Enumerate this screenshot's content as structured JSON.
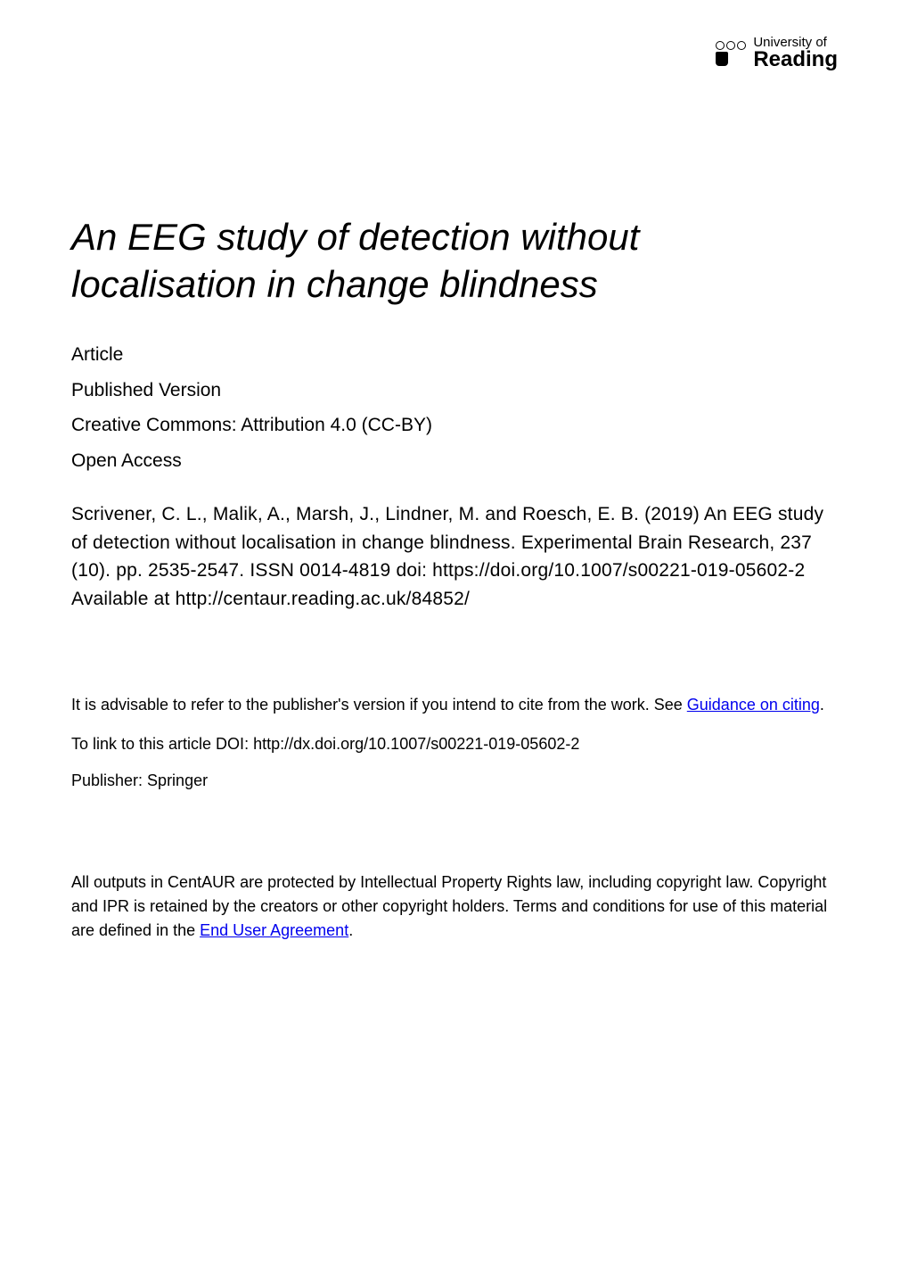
{
  "logo": {
    "line1": "University of",
    "line2": "Reading"
  },
  "title_line1": "An EEG study of detection without",
  "title_line2": "localisation in change blindness",
  "meta": {
    "type": "Article",
    "version": "Published Version",
    "license": "Creative Commons: Attribution 4.0 (CC-BY)",
    "access": "Open Access"
  },
  "citation": "Scrivener, C. L., Malik, A., Marsh, J., Lindner, M. and Roesch, E. B. (2019) An EEG study of detection without localisation in change blindness. Experimental Brain Research, 237 (10). pp. 2535-2547. ISSN 0014-4819 doi: https://doi.org/10.1007/s00221-019-05602-2 Available at http://centaur.reading.ac.uk/84852/",
  "notice": {
    "prefix": "It is advisable to refer to the publisher's version if you intend to cite from the work.  See ",
    "link_text": "Guidance on citing",
    "suffix": "."
  },
  "doi": {
    "label": "To link to this article DOI: ",
    "value": "http://dx.doi.org/10.1007/s00221-019-05602-2"
  },
  "publisher": {
    "label": "Publisher: ",
    "value": "Springer"
  },
  "footer": {
    "text_prefix": "All outputs in CentAUR are protected by Intellectual Property Rights law, including copyright law. Copyright and IPR is retained by the creators or other copyright holders. Terms and conditions for use of this material are defined in the ",
    "link_text": "End User Agreement",
    "suffix": "."
  },
  "colors": {
    "background": "#ffffff",
    "text": "#000000",
    "link": "#0000ee"
  },
  "typography": {
    "title_fontsize": 42,
    "title_style": "italic",
    "body_fontsize": 21,
    "notice_fontsize": 18,
    "font_family": "Arial"
  }
}
